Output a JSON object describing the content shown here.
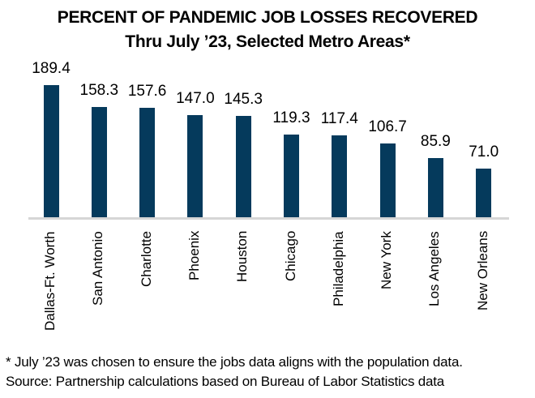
{
  "chart_data": {
    "type": "bar",
    "title": "PERCENT OF PANDEMIC JOB LOSSES RECOVERED",
    "subtitle": "Thru July ’23, Selected Metro Areas*",
    "categories": [
      "Dallas-Ft. Worth",
      "San Antonio",
      "Charlotte",
      "Phoenix",
      "Houston",
      "Chicago",
      "Philadelphia",
      "New York",
      "Los Angeles",
      "New Orleans"
    ],
    "values": [
      189.4,
      158.3,
      157.6,
      147.0,
      145.3,
      119.3,
      117.4,
      106.7,
      85.9,
      71.0
    ],
    "value_labels": [
      "189.4",
      "158.3",
      "157.6",
      "147.0",
      "145.3",
      "119.3",
      "117.4",
      "106.7",
      "85.9",
      "71.0"
    ],
    "xlabel": "",
    "ylabel": "",
    "ylim": [
      0,
      200
    ],
    "grid": false,
    "legend": null,
    "bar_color": "#053a5c",
    "data_labels": true
  },
  "footnotes": {
    "note": "* July ’23 was chosen to ensure the jobs data aligns with the population data.",
    "source": "Source: Partnership calculations based on Bureau of Labor Statistics data"
  }
}
